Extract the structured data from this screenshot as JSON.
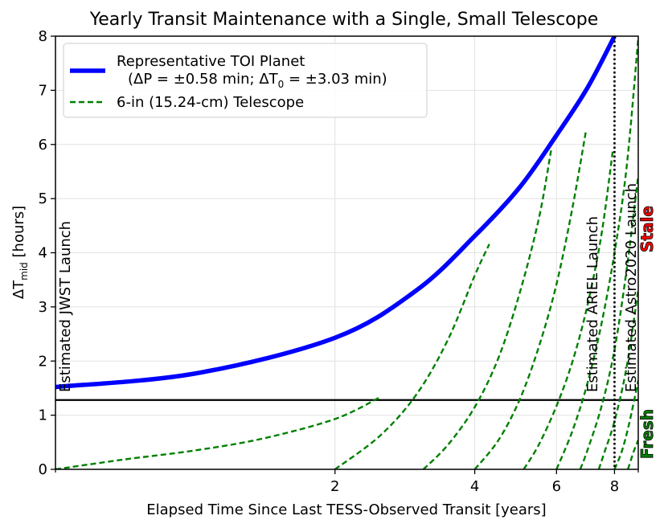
{
  "chart_data": {
    "type": "line",
    "title": "Yearly Transit Maintenance with a Single, Small Telescope",
    "xlabel": "Elapsed Time Since Last TESS-Observed Transit [years]",
    "ylabel_main": "ΔT",
    "ylabel_sub": "mid",
    "ylabel_units": " [hours]",
    "x_scale": "log",
    "xlim": [
      0.5,
      9
    ],
    "ylim": [
      0,
      8
    ],
    "x_ticks": [
      2,
      4,
      6,
      8
    ],
    "y_ticks": [
      0,
      1,
      2,
      3,
      4,
      5,
      6,
      7,
      8
    ],
    "threshold_hours": 1.28,
    "legend": {
      "location": "upper-left",
      "toi_label": "Representative TOI Planet",
      "toi_detail_prefix": "(ΔP = ±0.58 min; ΔT",
      "toi_detail_sub": "0",
      "toi_detail_suffix": " = ±3.03 min)",
      "telescope_label": "6-in (15.24-cm) Telescope"
    },
    "toi_curve": {
      "name": "Representative TOI Planet",
      "color": "#0000ff",
      "x": [
        0.5,
        1.0,
        2.0,
        3.0,
        4.0,
        5.0,
        6.0,
        7.0,
        8.0
      ],
      "y": [
        1.52,
        1.77,
        2.43,
        3.31,
        4.31,
        5.21,
        6.17,
        7.05,
        8.0
      ]
    },
    "telescope_curves": [
      {
        "name": "6-in (15.24-cm) Telescope",
        "start": 0.5,
        "x": [
          0.5,
          0.7,
          1.0,
          1.4,
          2.0,
          2.5
        ],
        "y": [
          0.0,
          0.18,
          0.35,
          0.57,
          0.93,
          1.33
        ]
      },
      {
        "name": "6-in (15.24-cm) Telescope",
        "start": 2.0,
        "x": [
          2.0,
          2.5,
          3.0,
          3.5,
          4.0,
          4.3
        ],
        "y": [
          0.0,
          0.62,
          1.39,
          2.39,
          3.58,
          4.16
        ]
      },
      {
        "name": "6-in (15.24-cm) Telescope",
        "start": 3.1,
        "x": [
          3.1,
          3.5,
          4.0,
          4.5,
          5.0,
          5.5,
          5.84
        ],
        "y": [
          0.0,
          0.45,
          1.15,
          2.06,
          3.26,
          4.64,
          5.89
        ]
      },
      {
        "name": "6-in (15.24-cm) Telescope",
        "start": 4.0,
        "x": [
          4.0,
          4.5,
          5.0,
          5.5,
          6.0,
          6.5,
          6.95
        ],
        "y": [
          0.0,
          0.54,
          1.29,
          2.27,
          3.42,
          4.85,
          6.27
        ]
      },
      {
        "name": "6-in (15.24-cm) Telescope",
        "start": 5.1,
        "x": [
          5.1,
          5.5,
          6.0,
          6.5,
          7.0,
          7.5,
          7.94
        ],
        "y": [
          0.0,
          0.46,
          1.17,
          2.0,
          3.04,
          4.34,
          5.91
        ]
      },
      {
        "name": "6-in (15.24-cm) Telescope",
        "start": 6.0,
        "x": [
          6.0,
          6.5,
          7.0,
          7.5,
          8.0,
          8.5,
          9.0
        ],
        "y": [
          0.0,
          0.72,
          1.6,
          2.69,
          4.0,
          5.6,
          7.96
        ]
      },
      {
        "name": "6-in (15.24-cm) Telescope",
        "start": 6.75,
        "x": [
          6.75,
          7.0,
          7.5,
          8.0,
          8.5,
          9.0
        ],
        "y": [
          0.0,
          0.36,
          1.16,
          2.21,
          3.7,
          5.43
        ]
      },
      {
        "name": "6-in (15.24-cm) Telescope",
        "start": 7.4,
        "x": [
          7.4,
          7.6,
          8.0,
          8.5,
          9.0
        ],
        "y": [
          0.0,
          0.3,
          0.89,
          1.9,
          3.32
        ]
      },
      {
        "name": "6-in (15.24-cm) Telescope",
        "start": 8.0,
        "x": [
          8.0,
          8.3,
          8.6,
          9.0
        ],
        "y": [
          0.0,
          0.34,
          0.84,
          1.64
        ]
      },
      {
        "name": "6-in (15.24-cm) Telescope",
        "start": 8.55,
        "x": [
          8.55,
          8.8,
          9.0
        ],
        "y": [
          0.0,
          0.33,
          0.54
        ]
      }
    ],
    "vertical_markers": [
      {
        "x": 8.0,
        "style": "dotted",
        "label": "Estimated ARIEL Launch"
      }
    ],
    "annotations": {
      "jwst": "Estimated JWST Launch",
      "ariel": "Estimated ARIEL Launch",
      "astro": "Estimated Astro2020 Launch",
      "stale": "Stale",
      "fresh": "Fresh"
    },
    "colors": {
      "toi": "#0000ff",
      "telescope": "#008000",
      "stale": "#ff0000",
      "fresh": "#008000",
      "grid": "#e2e2e2"
    }
  }
}
